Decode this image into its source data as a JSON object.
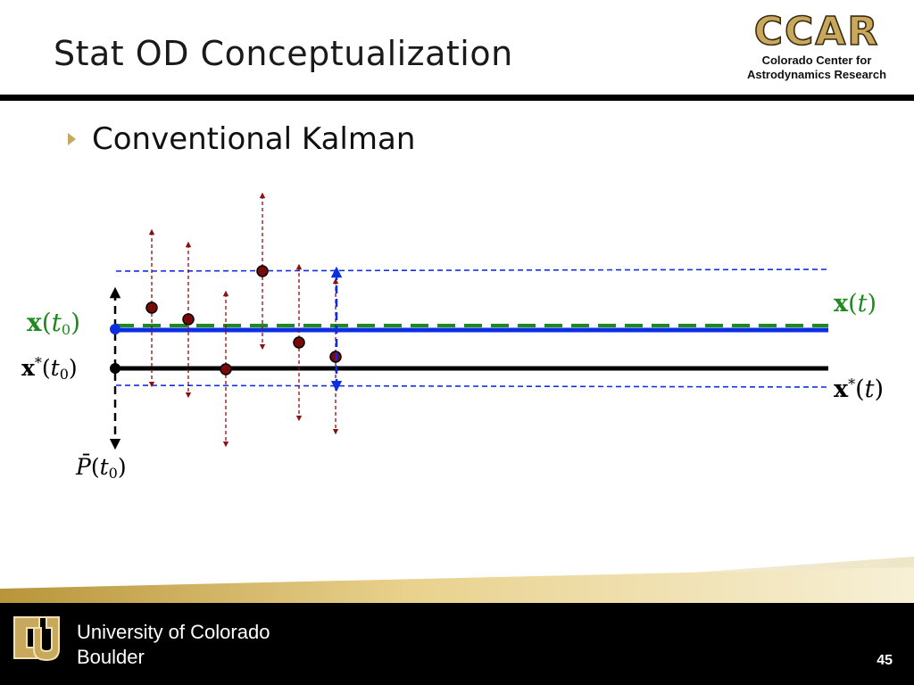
{
  "slide": {
    "title": "Stat OD Conceptualization",
    "bullet": "Conventional Kalman",
    "page_number": "45"
  },
  "logo": {
    "letters": "CCAR",
    "subtitle_line1": "Colorado Center for",
    "subtitle_line2": "Astrodynamics Research"
  },
  "footer": {
    "university_line1": "University of Colorado",
    "university_line2": "Boulder"
  },
  "diagram": {
    "labels": {
      "x_t0": {
        "symbol": "x",
        "arg": "t",
        "sub": "0"
      },
      "xstar_t0": {
        "symbol": "x",
        "sup": "*",
        "arg": "t",
        "sub": "0"
      },
      "x_t": {
        "symbol": "x",
        "arg": "t"
      },
      "xstar_t": {
        "symbol": "x",
        "sup": "*",
        "arg": "t"
      },
      "pbar_t0": {
        "symbol": "P̄",
        "arg": "t",
        "sub": "0"
      }
    },
    "colors": {
      "estimate": "#0a2ee0",
      "reference": "#000000",
      "truth": "#1f8a1f",
      "observation": "#8b1010",
      "bounds": "#1030e0",
      "label_green": "#1f8a1f"
    }
  }
}
